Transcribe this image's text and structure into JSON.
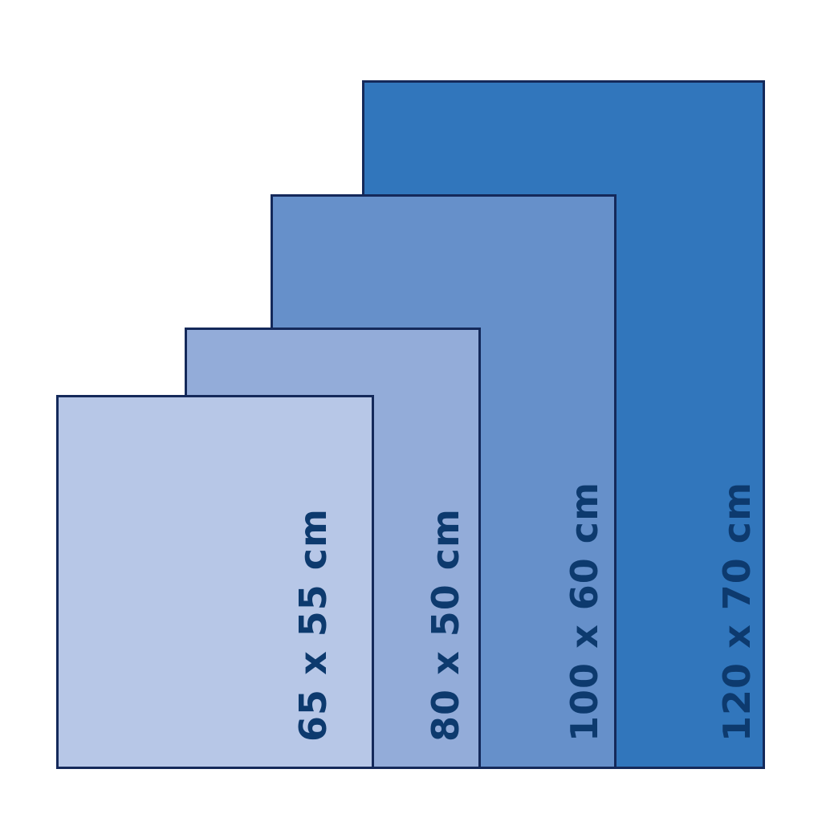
{
  "sizes": [
    {
      "label": "120 x 70 cm",
      "color": "#3176bc"
    },
    {
      "label": "100 x 60 cm",
      "color": "#6690ca"
    },
    {
      "label": "80 x 50 cm",
      "color": "#93acd9"
    },
    {
      "label": "65 x 55 cm",
      "color": "#b7c7e7"
    }
  ],
  "colors": {
    "border": "#14295a",
    "text": "#0d3a6e"
  }
}
